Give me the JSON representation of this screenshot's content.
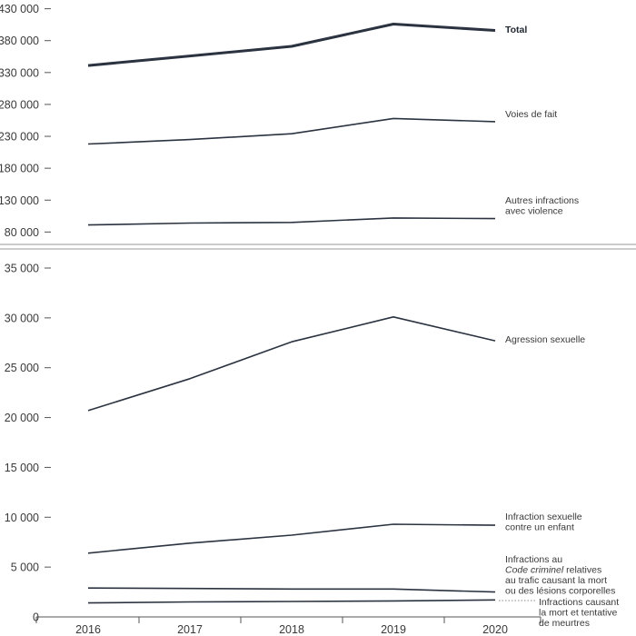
{
  "chart_data": [
    {
      "type": "line",
      "x": [
        "2016",
        "2017",
        "2018",
        "2019",
        "2020"
      ],
      "yticks": [
        "430 000",
        "380 000",
        "330 000",
        "280 000",
        "230 000",
        "180 000",
        "130 000",
        "80 000"
      ],
      "ytick_values": [
        430000,
        380000,
        330000,
        280000,
        230000,
        180000,
        130000,
        80000
      ],
      "ylim": [
        62000,
        438000
      ],
      "series": [
        {
          "name": "Total",
          "label_lines": [
            "Total"
          ],
          "values": [
            341000,
            356000,
            371000,
            406000,
            396000
          ],
          "color": "#2b3340",
          "bold": true
        },
        {
          "name": "Voies de fait",
          "label_lines": [
            "Voies de fait"
          ],
          "values": [
            218000,
            225000,
            234000,
            258000,
            253000
          ],
          "color": "#2b3340",
          "bold": false
        },
        {
          "name": "Autres infractions avec violence",
          "label_lines": [
            "Autres infractions",
            "avec violence"
          ],
          "values": [
            91000,
            94000,
            95000,
            102000,
            101000
          ],
          "color": "#2b3340",
          "bold": false
        }
      ]
    },
    {
      "type": "line",
      "x": [
        "2016",
        "2017",
        "2018",
        "2019",
        "2020"
      ],
      "yticks": [
        "35 000",
        "30 000",
        "25 000",
        "20 000",
        "15 000",
        "10 000",
        "5 000",
        "0"
      ],
      "ytick_values": [
        35000,
        30000,
        25000,
        20000,
        15000,
        10000,
        5000,
        0
      ],
      "ylim": [
        0,
        35000
      ],
      "series": [
        {
          "name": "Agression sexuelle",
          "label_lines": [
            "Agression sexuelle"
          ],
          "values": [
            20700,
            23900,
            27600,
            30100,
            27700
          ],
          "color": "#2b3340"
        },
        {
          "name": "Infraction sexuelle contre un enfant",
          "label_lines": [
            "Infraction sexuelle",
            "contre un enfant"
          ],
          "values": [
            6400,
            7400,
            8200,
            9300,
            9200
          ],
          "color": "#2b3340"
        },
        {
          "name": "Infractions au Code criminel relatives au trafic causant la mort ou des lésions corporelles",
          "label_lines": [
            "Infractions au",
            "Code criminel relatives",
            "au trafic causant la mort",
            "ou des lésions corporelles"
          ],
          "values": [
            2900,
            2850,
            2800,
            2800,
            2500
          ],
          "color": "#2b3340"
        },
        {
          "name": "Infractions causant la mort et tentative de meurtres",
          "label_lines": [
            "Infractions causant",
            "la mort et tentative",
            "de meurtres"
          ],
          "values": [
            1400,
            1500,
            1550,
            1600,
            1700
          ],
          "color": "#2b3340"
        }
      ]
    }
  ]
}
